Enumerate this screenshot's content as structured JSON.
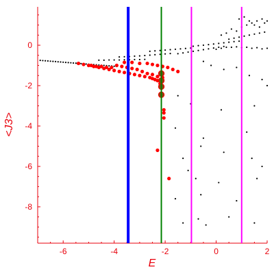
{
  "chart_data": {
    "type": "scatter",
    "xlabel": "E",
    "ylabel": "<J3>",
    "xlim": [
      -7,
      2
    ],
    "ylim": [
      -9.8,
      1.9
    ],
    "x_ticks": [
      -6,
      -4,
      -2,
      0,
      2
    ],
    "y_ticks": [
      0,
      -2,
      -4,
      -6,
      -8
    ],
    "grid": false,
    "colors": {
      "axis": "#e8000b",
      "black_points": "#000000",
      "red_points": "#ff0000",
      "highlight_points": "#8b4513",
      "blue_line": "#0000ff",
      "green_line": "#008000",
      "magenta_line": "#ff00ff"
    },
    "vertical_lines": [
      {
        "x": -3.45,
        "color": "#0000ff"
      },
      {
        "x": -2.15,
        "color": "#008000"
      },
      {
        "x": -0.97,
        "color": "#ff00ff"
      },
      {
        "x": 1.0,
        "color": "#ff00ff"
      }
    ],
    "series": [
      {
        "points": [
          [
            -6.9,
            -0.75
          ],
          [
            -6.8,
            -0.76
          ],
          [
            -6.7,
            -0.77
          ],
          [
            -6.6,
            -0.78
          ],
          [
            -6.5,
            -0.79
          ],
          [
            -6.4,
            -0.8
          ],
          [
            -6.3,
            -0.81
          ],
          [
            -6.2,
            -0.82
          ],
          [
            -6.1,
            -0.83
          ],
          [
            -6.0,
            -0.84
          ],
          [
            -5.9,
            -0.85
          ],
          [
            -5.8,
            -0.86
          ],
          [
            -5.7,
            -0.87
          ],
          [
            -5.6,
            -0.88
          ],
          [
            -5.5,
            -0.89
          ],
          [
            -5.4,
            -0.9
          ],
          [
            -5.3,
            -0.91
          ],
          [
            -5.2,
            -0.92
          ],
          [
            -5.1,
            -0.93
          ],
          [
            -5.0,
            -0.94
          ],
          [
            -4.9,
            -0.95
          ],
          [
            -4.8,
            -0.96
          ],
          [
            -4.7,
            -0.97
          ],
          [
            -4.6,
            -0.98
          ],
          [
            -4.5,
            -0.99
          ],
          [
            -4.4,
            -1.0
          ],
          [
            -4.3,
            -1.01
          ],
          [
            -4.2,
            -1.02
          ],
          [
            -4.1,
            -1.03
          ],
          [
            -4.0,
            -1.04
          ],
          [
            -4.6,
            -0.74
          ],
          [
            -4.4,
            -0.74
          ],
          [
            -4.2,
            -0.73
          ],
          [
            -4.0,
            -0.73
          ],
          [
            -3.8,
            -0.73
          ],
          [
            -3.6,
            -0.72
          ],
          [
            -3.4,
            -0.72
          ],
          [
            -3.2,
            -0.71
          ],
          [
            -3.0,
            -0.71
          ],
          [
            -2.8,
            -0.7
          ],
          [
            -3.8,
            -0.58
          ],
          [
            -3.6,
            -0.57
          ],
          [
            -3.4,
            -0.56
          ],
          [
            -3.2,
            -0.54
          ],
          [
            -3.0,
            -0.53
          ],
          [
            -2.8,
            -0.51
          ],
          [
            -2.6,
            -0.49
          ],
          [
            -2.4,
            -0.47
          ],
          [
            -2.2,
            -0.45
          ],
          [
            -2.0,
            -0.43
          ],
          [
            -1.8,
            -0.41
          ],
          [
            -2.6,
            -0.3
          ],
          [
            -2.4,
            -0.28
          ],
          [
            -2.2,
            -0.26
          ],
          [
            -2.0,
            -0.24
          ],
          [
            -1.8,
            -0.22
          ],
          [
            -1.6,
            -0.2
          ],
          [
            -1.4,
            -0.18
          ],
          [
            -1.2,
            -0.16
          ],
          [
            -1.0,
            -0.14
          ],
          [
            -1.5,
            -0.42
          ],
          [
            -1.3,
            -0.38
          ],
          [
            -1.1,
            -0.34
          ],
          [
            -0.9,
            -0.3
          ],
          [
            -0.7,
            -0.26
          ],
          [
            -0.5,
            -0.22
          ],
          [
            -0.3,
            -0.18
          ],
          [
            -0.1,
            -0.14
          ],
          [
            0.1,
            -0.1
          ],
          [
            0.3,
            -0.06
          ],
          [
            -0.9,
            -0.05
          ],
          [
            -0.7,
            -0.02
          ],
          [
            -0.5,
            0.0
          ],
          [
            -0.3,
            0.03
          ],
          [
            -0.1,
            0.06
          ],
          [
            0.1,
            0.09
          ],
          [
            0.3,
            0.12
          ],
          [
            0.5,
            0.15
          ],
          [
            0.7,
            0.18
          ],
          [
            0.9,
            0.2
          ],
          [
            0.0,
            -0.2
          ],
          [
            0.2,
            -0.15
          ],
          [
            0.4,
            -0.1
          ],
          [
            0.6,
            -0.1
          ],
          [
            0.8,
            -0.08
          ],
          [
            1.0,
            -0.12
          ],
          [
            1.2,
            -0.1
          ],
          [
            1.4,
            -0.15
          ],
          [
            1.6,
            -0.12
          ],
          [
            1.8,
            -0.18
          ],
          [
            2.0,
            -0.15
          ],
          [
            0.2,
            0.5
          ],
          [
            0.4,
            0.6
          ],
          [
            0.6,
            0.8
          ],
          [
            0.8,
            0.7
          ],
          [
            1.0,
            0.9
          ],
          [
            1.2,
            1.0
          ],
          [
            1.4,
            1.1
          ],
          [
            1.6,
            1.2
          ],
          [
            1.8,
            1.3
          ],
          [
            2.0,
            1.2
          ],
          [
            0.5,
            0.3
          ],
          [
            0.7,
            0.35
          ],
          [
            0.9,
            0.4
          ],
          [
            1.1,
            0.45
          ],
          [
            1.3,
            0.5
          ],
          [
            1.5,
            0.55
          ],
          [
            1.7,
            0.6
          ],
          [
            1.9,
            0.65
          ],
          [
            0.9,
            1.3
          ],
          [
            1.1,
            1.4
          ],
          [
            1.3,
            1.2
          ],
          [
            1.5,
            1.0
          ],
          [
            1.7,
            0.9
          ],
          [
            1.9,
            1.1
          ],
          [
            -0.5,
            -0.8
          ],
          [
            -0.2,
            -1.0
          ],
          [
            0.3,
            -1.2
          ],
          [
            0.8,
            -1.1
          ],
          [
            1.3,
            -1.5
          ],
          [
            1.8,
            -1.7
          ],
          [
            -1.5,
            -2.5
          ],
          [
            -1.0,
            -2.9
          ],
          [
            0.2,
            -3.2
          ],
          [
            1.5,
            -3.0
          ],
          [
            2.0,
            -2.0
          ],
          [
            -1.6,
            -4.1
          ],
          [
            -0.5,
            -4.6
          ],
          [
            1.2,
            -4.3
          ],
          [
            -1.3,
            -5.6
          ],
          [
            -0.6,
            -5.0
          ],
          [
            0.3,
            -5.3
          ],
          [
            1.4,
            -5.6
          ],
          [
            -1.1,
            -6.2
          ],
          [
            -0.8,
            -6.6
          ],
          [
            0.1,
            -6.8
          ],
          [
            1.6,
            -6.6
          ],
          [
            1.8,
            -6.0
          ],
          [
            -1.6,
            -7.6
          ],
          [
            -0.6,
            -7.4
          ],
          [
            0.8,
            -7.7
          ],
          [
            -1.3,
            -8.8
          ],
          [
            -0.7,
            -8.6
          ],
          [
            -0.4,
            -8.9
          ],
          [
            0.5,
            -8.5
          ],
          [
            1.5,
            -8.8
          ]
        ]
      },
      {
        "points": [
          [
            -5.4,
            -0.9
          ],
          [
            -5.2,
            -0.95
          ],
          [
            -5.0,
            -1.0
          ],
          [
            -4.8,
            -1.05
          ],
          [
            -4.6,
            -1.1
          ],
          [
            -4.4,
            -1.15
          ],
          [
            -4.2,
            -1.2
          ],
          [
            -4.0,
            -1.25
          ],
          [
            -3.8,
            -1.3
          ],
          [
            -3.6,
            -1.35
          ],
          [
            -3.4,
            -1.4
          ],
          [
            -3.2,
            -1.45
          ],
          [
            -3.0,
            -1.5
          ],
          [
            -2.8,
            -1.55
          ],
          [
            -2.6,
            -1.6
          ],
          [
            -2.4,
            -1.7
          ],
          [
            -4.9,
            -1.0
          ],
          [
            -4.7,
            -1.05
          ],
          [
            -4.5,
            -1.05
          ],
          [
            -4.3,
            -1.1
          ],
          [
            -4.1,
            -1.1
          ],
          [
            -3.9,
            -1.0
          ],
          [
            -3.7,
            -1.05
          ],
          [
            -3.5,
            -1.1
          ],
          [
            -3.3,
            -1.15
          ],
          [
            -3.1,
            -1.2
          ],
          [
            -2.9,
            -1.3
          ],
          [
            -2.7,
            -1.4
          ],
          [
            -2.5,
            -1.45
          ],
          [
            -2.3,
            -1.55
          ],
          [
            -2.1,
            -1.6
          ],
          [
            -3.6,
            -0.85
          ],
          [
            -3.3,
            -0.85
          ],
          [
            -3.0,
            -0.9
          ],
          [
            -2.7,
            -0.9
          ],
          [
            -2.5,
            -0.95
          ],
          [
            -2.3,
            -1.0
          ],
          [
            -2.1,
            -1.05
          ],
          [
            -1.9,
            -1.1
          ],
          [
            -1.7,
            -1.2
          ],
          [
            -1.5,
            -1.3
          ],
          [
            -2.5,
            -1.65
          ],
          [
            -2.3,
            -1.75
          ],
          [
            -2.2,
            -1.9
          ],
          [
            -2.05,
            -3.2
          ],
          [
            -2.05,
            -3.35
          ],
          [
            -2.05,
            -3.6
          ],
          [
            -2.3,
            -5.2
          ],
          [
            -1.85,
            -6.6
          ]
        ]
      },
      {
        "points": [
          [
            -2.15,
            -1.4
          ],
          [
            -2.15,
            -1.75
          ],
          [
            -2.15,
            -2.05
          ],
          [
            -2.15,
            -2.45
          ]
        ]
      }
    ]
  }
}
